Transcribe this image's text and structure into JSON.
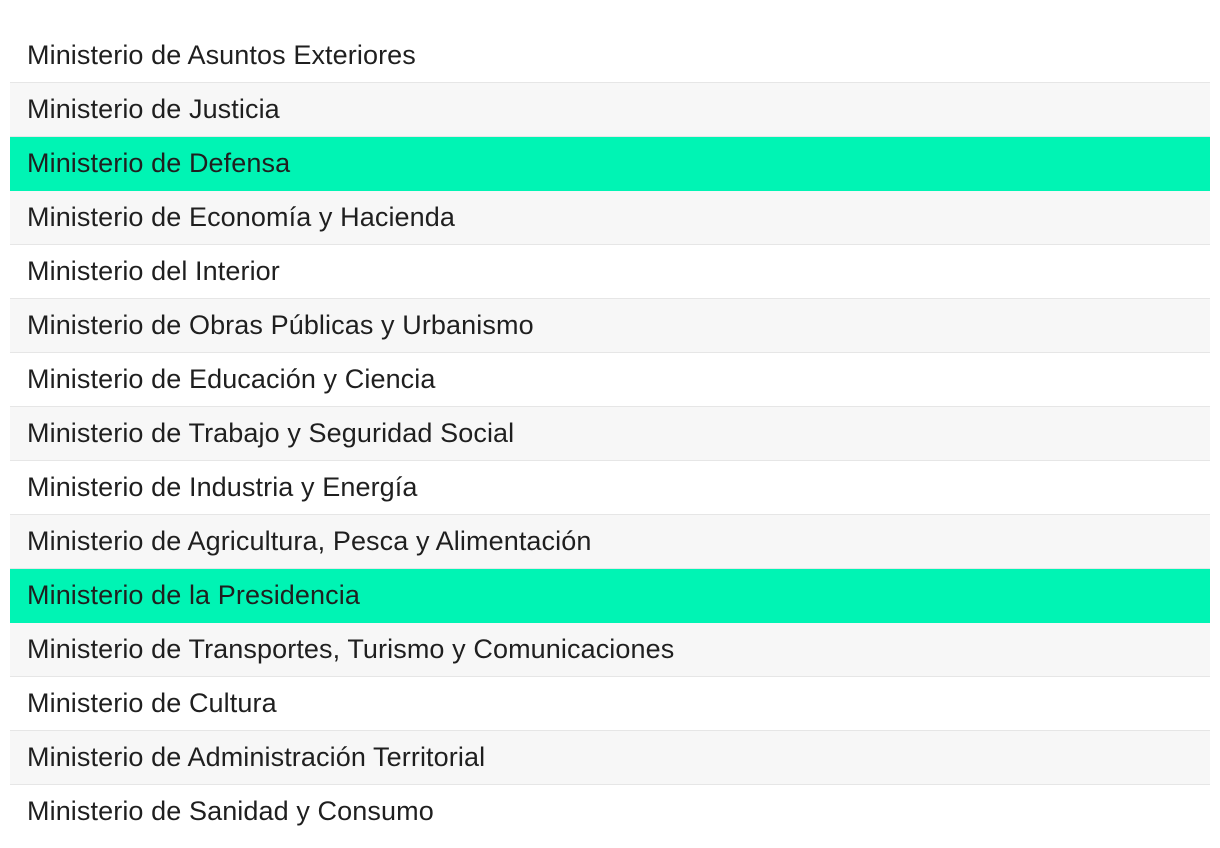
{
  "list": {
    "items": [
      {
        "label": "Ministerio de Asuntos Exteriores",
        "selected": false
      },
      {
        "label": "Ministerio de Justicia",
        "selected": false
      },
      {
        "label": "Ministerio de Defensa",
        "selected": true
      },
      {
        "label": "Ministerio de Economía y Hacienda",
        "selected": false
      },
      {
        "label": "Ministerio del Interior",
        "selected": false
      },
      {
        "label": "Ministerio de Obras Públicas y Urbanismo",
        "selected": false
      },
      {
        "label": "Ministerio de Educación y Ciencia",
        "selected": false
      },
      {
        "label": "Ministerio de Trabajo y Seguridad Social",
        "selected": false
      },
      {
        "label": "Ministerio de Industria y Energía",
        "selected": false
      },
      {
        "label": "Ministerio de Agricultura, Pesca y Alimentación",
        "selected": false
      },
      {
        "label": "Ministerio de la Presidencia",
        "selected": true
      },
      {
        "label": "Ministerio de Transportes, Turismo y Comunicaciones",
        "selected": false
      },
      {
        "label": "Ministerio de Cultura",
        "selected": false
      },
      {
        "label": "Ministerio de Administración Territorial",
        "selected": false
      },
      {
        "label": "Ministerio de Sanidad y Consumo",
        "selected": false
      }
    ]
  },
  "colors": {
    "selected_background": "#00f4b4",
    "stripe_background": "#f7f7f7",
    "text": "#1f1f1f"
  }
}
